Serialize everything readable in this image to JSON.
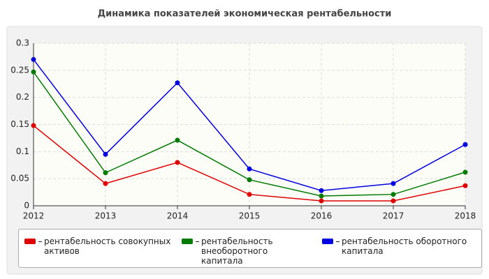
{
  "chart_data": {
    "type": "line",
    "title": "Динамика показателей экономическая рентабельности",
    "x": [
      2012,
      2013,
      2014,
      2015,
      2016,
      2017,
      2018
    ],
    "xlim": [
      2012,
      2018
    ],
    "xticks": [
      2012,
      2013,
      2014,
      2015,
      2016,
      2017,
      2018
    ],
    "ylim": [
      0,
      0.3
    ],
    "yticks": [
      0,
      0.05,
      0.1,
      0.15,
      0.2,
      0.25,
      0.3
    ],
    "grid": true,
    "series": [
      {
        "name": "рентабельность совокупных активов",
        "color": "#e00000",
        "values": [
          0.148,
          0.041,
          0.08,
          0.021,
          0.009,
          0.009,
          0.037
        ]
      },
      {
        "name": "рентабельность внеоборотного капитала",
        "color": "#007a00",
        "values": [
          0.247,
          0.061,
          0.121,
          0.048,
          0.018,
          0.021,
          0.062
        ]
      },
      {
        "name": "рентабельность оборотного капитала",
        "color": "#0000e0",
        "values": [
          0.27,
          0.095,
          0.227,
          0.068,
          0.028,
          0.041,
          0.113
        ]
      }
    ]
  }
}
